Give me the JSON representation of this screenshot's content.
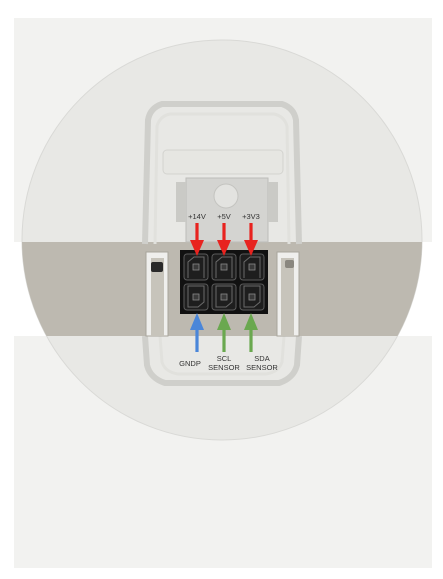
{
  "diagram": {
    "title": "",
    "top_labels": [
      {
        "text": "+14V",
        "color": "#e8231f",
        "direction": "down"
      },
      {
        "text": "+5V",
        "color": "#e8231f",
        "direction": "down"
      },
      {
        "text": "+3V3",
        "color": "#e8231f",
        "direction": "down"
      }
    ],
    "bottom_labels": [
      {
        "lines": [
          "GNDP"
        ],
        "color": "#4a86d9",
        "direction": "up"
      },
      {
        "lines": [
          "SCL",
          "SENSOR"
        ],
        "color": "#6aa84f",
        "direction": "up"
      },
      {
        "lines": [
          "SDA",
          "SENSOR"
        ],
        "color": "#6aa84f",
        "direction": "up"
      }
    ],
    "connector": {
      "rows": 2,
      "cols": 3,
      "body_color": "#111111"
    },
    "colors": {
      "band": "#bdb9b0",
      "disc": "#e9e9e6",
      "backdrop": "#f0f0ee"
    }
  }
}
